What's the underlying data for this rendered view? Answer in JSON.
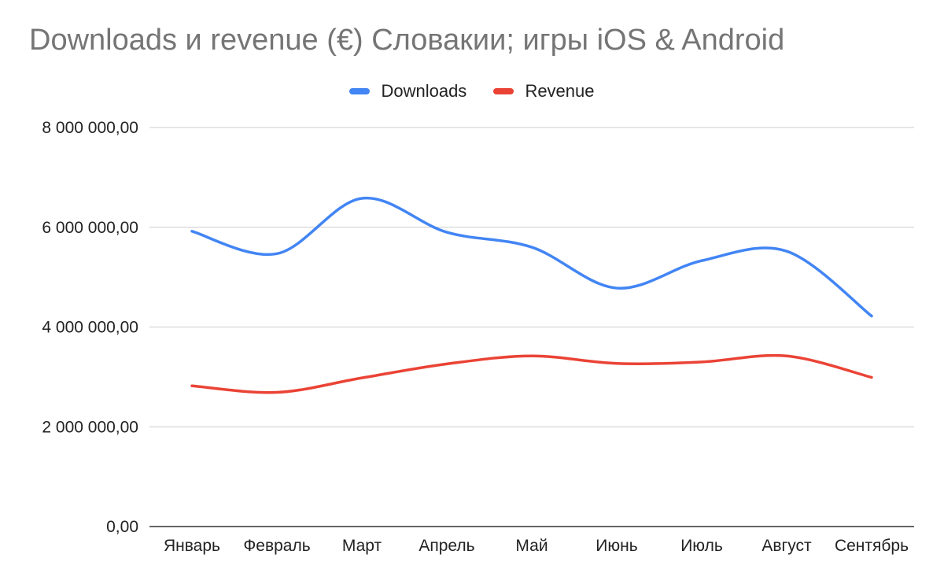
{
  "chart_data": {
    "type": "line",
    "title": "Downloads и revenue (€) Словакии; игры iOS & Android",
    "categories": [
      "Январь",
      "Февраль",
      "Март",
      "Апрель",
      "Май",
      "Июнь",
      "Июль",
      "Август",
      "Сентябрь"
    ],
    "series": [
      {
        "name": "Downloads",
        "color": "#4285f4",
        "values": [
          5920000,
          5470000,
          6580000,
          5900000,
          5600000,
          4780000,
          5330000,
          5520000,
          4220000
        ]
      },
      {
        "name": "Revenue",
        "color": "#ea4335",
        "values": [
          2820000,
          2690000,
          2980000,
          3260000,
          3420000,
          3270000,
          3300000,
          3420000,
          2990000
        ]
      }
    ],
    "yticks": [
      "0,00",
      "2 000 000,00",
      "4 000 000,00",
      "6 000 000,00",
      "8 000 000,00"
    ],
    "ylim": [
      0,
      8000000
    ],
    "xlabel": "",
    "ylabel": "",
    "grid": true,
    "legend": "top-center",
    "smooth": true
  }
}
